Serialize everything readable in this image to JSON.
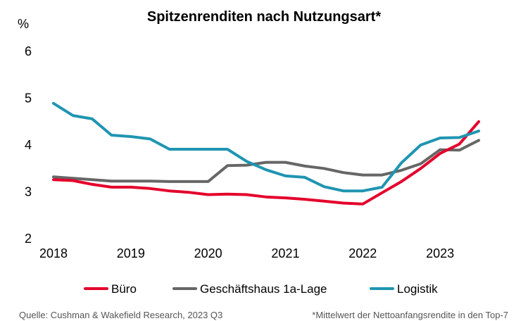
{
  "chart_data": {
    "type": "line",
    "title": "Spitzenrenditen nach Nutzungsart*",
    "ylabel": "%",
    "xlabel": "",
    "ylim": [
      2,
      6
    ],
    "yticks": [
      "2",
      "3",
      "4",
      "5",
      "6"
    ],
    "xticks": [
      "2018",
      "2019",
      "2020",
      "2021",
      "2022",
      "2023"
    ],
    "x": [
      2018.0,
      2018.25,
      2018.5,
      2018.75,
      2019.0,
      2019.25,
      2019.5,
      2019.75,
      2020.0,
      2020.25,
      2020.5,
      2020.75,
      2021.0,
      2021.25,
      2021.5,
      2021.75,
      2022.0,
      2022.25,
      2022.5,
      2022.75,
      2023.0,
      2023.25,
      2023.5
    ],
    "series": [
      {
        "name": "Büro",
        "color": "#e4002b",
        "values": [
          3.26,
          3.24,
          3.16,
          3.1,
          3.1,
          3.07,
          3.02,
          2.99,
          2.94,
          2.95,
          2.94,
          2.89,
          2.87,
          2.84,
          2.8,
          2.76,
          2.74,
          2.98,
          3.22,
          3.5,
          3.82,
          4.02,
          4.5
        ]
      },
      {
        "name": "Geschäftshaus 1a-Lage",
        "color": "#666666",
        "values": [
          3.32,
          3.29,
          3.26,
          3.23,
          3.23,
          3.23,
          3.22,
          3.22,
          3.22,
          3.56,
          3.57,
          3.63,
          3.63,
          3.55,
          3.5,
          3.41,
          3.36,
          3.36,
          3.46,
          3.6,
          3.9,
          3.89,
          4.1
        ]
      },
      {
        "name": "Logistik",
        "color": "#1f95b1",
        "values": [
          4.89,
          4.63,
          4.56,
          4.21,
          4.18,
          4.13,
          3.91,
          3.91,
          3.91,
          3.91,
          3.65,
          3.47,
          3.34,
          3.31,
          3.11,
          3.02,
          3.02,
          3.1,
          3.62,
          4.0,
          4.15,
          4.16,
          4.3
        ]
      }
    ],
    "source": "Quelle: Cushman & Wakefield Research, 2023 Q3",
    "footnote": "*Mittelwert der Nettoanfangsrendite in den Top-7"
  }
}
